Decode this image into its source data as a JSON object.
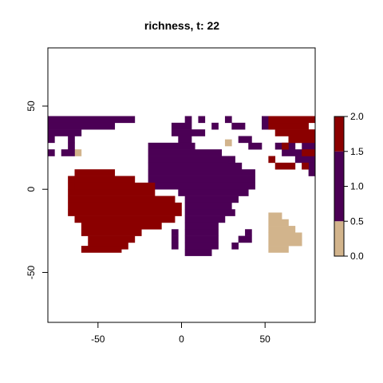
{
  "chart_data": {
    "type": "heatmap",
    "title": "richness, t: 22",
    "xlabel": "",
    "ylabel": "",
    "xlim": [
      -80,
      80
    ],
    "ylim": [
      -80,
      85
    ],
    "x_ticks": [
      -50,
      0,
      50
    ],
    "y_ticks": [
      50,
      0,
      -50
    ],
    "x_tick_labels": [
      "-50",
      "0",
      "50"
    ],
    "y_tick_labels": [
      "50",
      "0",
      "-50"
    ],
    "grid": false,
    "cell_size_degrees": 4,
    "value_legend": {
      "position": "right",
      "ticks": [
        0.0,
        0.5,
        1.0,
        1.5,
        2.0
      ],
      "tick_labels": [
        "0.0",
        "0.5",
        "1.0",
        "1.5",
        "2.0"
      ],
      "bins": [
        {
          "from": 0.0,
          "to": 0.5,
          "value": 0,
          "color": "#D2B48C"
        },
        {
          "from": 0.5,
          "to": 1.5,
          "value": 1,
          "color": "#4B0055"
        },
        {
          "from": 1.5,
          "to": 2.0,
          "value": 2,
          "color": "#8B0000"
        }
      ]
    },
    "series": [
      {
        "value": 0,
        "color": "#D2B48C",
        "cells": [
          [
            -64,
            20,
            4,
            4
          ],
          [
            26,
            26,
            4,
            4
          ],
          [
            52,
            -18,
            8,
            4
          ],
          [
            52,
            -22,
            12,
            4
          ],
          [
            52,
            -26,
            16,
            4
          ],
          [
            52,
            -30,
            20,
            4
          ],
          [
            52,
            -34,
            20,
            4
          ],
          [
            52,
            -38,
            12,
            4
          ]
        ]
      },
      {
        "value": 1,
        "color": "#4B0055",
        "cells": [
          [
            -80,
            40,
            52,
            4
          ],
          [
            -80,
            36,
            40,
            4
          ],
          [
            -80,
            32,
            20,
            4
          ],
          [
            -68,
            28,
            4,
            4
          ],
          [
            -68,
            24,
            4,
            4
          ],
          [
            -80,
            20,
            4,
            4
          ],
          [
            -72,
            20,
            8,
            4
          ],
          [
            -80,
            28,
            4,
            4
          ],
          [
            -6,
            36,
            12,
            4
          ],
          [
            -6,
            32,
            20,
            4
          ],
          [
            -2,
            28,
            8,
            4
          ],
          [
            -20,
            24,
            28,
            4
          ],
          [
            -20,
            20,
            44,
            4
          ],
          [
            -20,
            16,
            52,
            4
          ],
          [
            -20,
            12,
            56,
            4
          ],
          [
            -20,
            8,
            64,
            4
          ],
          [
            -20,
            4,
            64,
            4
          ],
          [
            -20,
            0,
            64,
            4
          ],
          [
            -2,
            -4,
            42,
            4
          ],
          [
            2,
            -8,
            32,
            4
          ],
          [
            2,
            -12,
            28,
            4
          ],
          [
            2,
            -16,
            30,
            4
          ],
          [
            2,
            -20,
            24,
            4
          ],
          [
            2,
            -24,
            20,
            4
          ],
          [
            2,
            -28,
            20,
            4
          ],
          [
            2,
            -32,
            20,
            4
          ],
          [
            2,
            -36,
            20,
            4
          ],
          [
            2,
            -40,
            16,
            4
          ],
          [
            -6,
            -28,
            4,
            4
          ],
          [
            -6,
            -32,
            4,
            4
          ],
          [
            -6,
            -36,
            4,
            4
          ],
          [
            2,
            40,
            4,
            4
          ],
          [
            10,
            40,
            4,
            4
          ],
          [
            26,
            40,
            4,
            4
          ],
          [
            18,
            36,
            4,
            4
          ],
          [
            30,
            36,
            8,
            4
          ],
          [
            34,
            28,
            8,
            4
          ],
          [
            40,
            24,
            8,
            4
          ],
          [
            28,
            16,
            4,
            4
          ],
          [
            38,
            -28,
            4,
            4
          ],
          [
            34,
            -32,
            8,
            4
          ],
          [
            30,
            -36,
            4,
            4
          ],
          [
            48,
            36,
            8,
            4
          ],
          [
            48,
            40,
            4,
            4
          ],
          [
            56,
            24,
            12,
            4
          ],
          [
            60,
            20,
            20,
            4
          ],
          [
            68,
            16,
            12,
            4
          ],
          [
            72,
            12,
            8,
            4
          ],
          [
            76,
            8,
            4,
            4
          ],
          [
            68,
            28,
            4,
            4
          ],
          [
            72,
            24,
            8,
            4
          ]
        ]
      },
      {
        "value": 2,
        "color": "#8B0000",
        "cells": [
          [
            -64,
            8,
            24,
            4
          ],
          [
            -64,
            4,
            36,
            4
          ],
          [
            -64,
            0,
            48,
            4
          ],
          [
            -68,
            4,
            4,
            4
          ],
          [
            -68,
            0,
            4,
            4
          ],
          [
            -68,
            -4,
            52,
            4
          ],
          [
            -68,
            -8,
            64,
            4
          ],
          [
            -68,
            -12,
            68,
            4
          ],
          [
            -68,
            -16,
            68,
            4
          ],
          [
            -64,
            -20,
            60,
            4
          ],
          [
            -56,
            -24,
            44,
            4
          ],
          [
            -56,
            -28,
            32,
            4
          ],
          [
            -56,
            -32,
            28,
            4
          ],
          [
            -56,
            -36,
            24,
            4
          ],
          [
            -60,
            -38,
            24,
            4
          ],
          [
            -60,
            -24,
            4,
            4
          ],
          [
            -60,
            -28,
            4,
            4
          ],
          [
            52,
            36,
            24,
            4
          ],
          [
            52,
            40,
            28,
            4
          ],
          [
            56,
            32,
            24,
            4
          ],
          [
            64,
            28,
            16,
            4
          ],
          [
            60,
            24,
            4,
            4
          ],
          [
            72,
            20,
            8,
            4
          ],
          [
            52,
            16,
            4,
            4
          ],
          [
            56,
            12,
            12,
            4
          ],
          [
            72,
            12,
            4,
            4
          ]
        ]
      }
    ]
  }
}
